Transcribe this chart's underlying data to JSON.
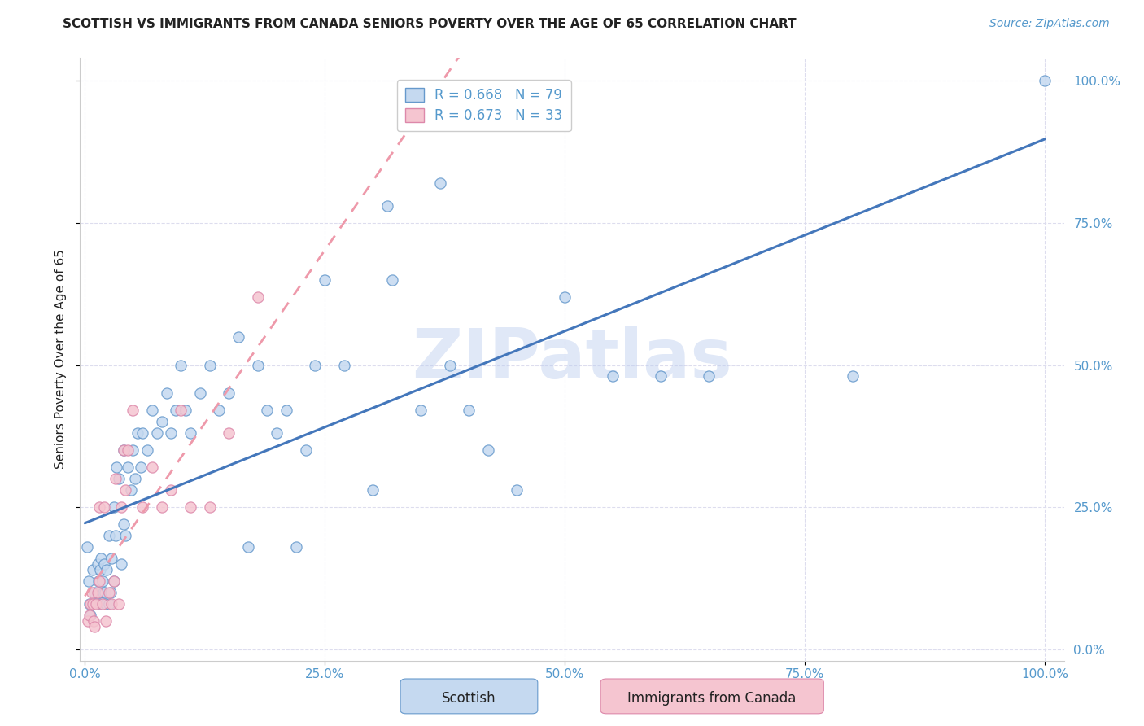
{
  "title": "SCOTTISH VS IMMIGRANTS FROM CANADA SENIORS POVERTY OVER THE AGE OF 65 CORRELATION CHART",
  "source": "Source: ZipAtlas.com",
  "ylabel": "Seniors Poverty Over the Age of 65",
  "watermark": "ZIPatlas",
  "r1": "0.668",
  "n1": "79",
  "r2": "0.673",
  "n2": "33",
  "scottish_color_face": "#c5d9f0",
  "scottish_color_edge": "#6699cc",
  "immigrants_color_face": "#f5c5d0",
  "immigrants_color_edge": "#dd88aa",
  "line_blue": "#4477bb",
  "line_pink": "#ee99aa",
  "bg_color": "#ffffff",
  "grid_color": "#ddddee",
  "tick_color": "#5599cc",
  "title_color": "#222222",
  "source_color": "#5599cc",
  "watermark_color": "#bbccee",
  "scottish_x": [
    0.2,
    0.4,
    0.5,
    0.6,
    0.8,
    1.0,
    1.2,
    1.3,
    1.4,
    1.5,
    1.5,
    1.6,
    1.7,
    1.8,
    1.9,
    2.0,
    2.1,
    2.2,
    2.3,
    2.5,
    2.5,
    2.7,
    2.8,
    3.0,
    3.0,
    3.2,
    3.3,
    3.5,
    3.8,
    4.0,
    4.0,
    4.2,
    4.5,
    4.8,
    5.0,
    5.2,
    5.5,
    5.8,
    6.0,
    6.5,
    7.0,
    7.5,
    8.0,
    8.5,
    9.0,
    9.5,
    10.0,
    10.5,
    11.0,
    12.0,
    13.0,
    14.0,
    15.0,
    16.0,
    17.0,
    18.0,
    19.0,
    20.0,
    21.0,
    22.0,
    23.0,
    24.0,
    25.0,
    27.0,
    30.0,
    32.0,
    35.0,
    38.0,
    40.0,
    42.0,
    45.0,
    50.0,
    55.0,
    60.0,
    65.0,
    80.0,
    100.0,
    31.5,
    37.0
  ],
  "scottish_y": [
    18.0,
    12.0,
    8.0,
    6.0,
    14.0,
    10.0,
    8.0,
    15.0,
    12.0,
    10.0,
    8.0,
    14.0,
    16.0,
    12.0,
    10.0,
    15.0,
    10.0,
    8.0,
    14.0,
    8.0,
    20.0,
    10.0,
    16.0,
    12.0,
    25.0,
    20.0,
    32.0,
    30.0,
    15.0,
    22.0,
    35.0,
    20.0,
    32.0,
    28.0,
    35.0,
    30.0,
    38.0,
    32.0,
    38.0,
    35.0,
    42.0,
    38.0,
    40.0,
    45.0,
    38.0,
    42.0,
    50.0,
    42.0,
    38.0,
    45.0,
    50.0,
    42.0,
    45.0,
    55.0,
    18.0,
    50.0,
    42.0,
    38.0,
    42.0,
    18.0,
    35.0,
    50.0,
    65.0,
    50.0,
    28.0,
    65.0,
    42.0,
    50.0,
    42.0,
    35.0,
    28.0,
    62.0,
    48.0,
    48.0,
    48.0,
    48.0,
    100.0,
    78.0,
    82.0
  ],
  "immigrants_x": [
    0.3,
    0.5,
    0.6,
    0.7,
    0.8,
    0.9,
    1.0,
    1.2,
    1.3,
    1.5,
    1.5,
    1.8,
    2.0,
    2.2,
    2.5,
    2.8,
    3.0,
    3.2,
    3.5,
    3.8,
    4.0,
    4.2,
    4.5,
    5.0,
    6.0,
    7.0,
    8.0,
    9.0,
    10.0,
    11.0,
    13.0,
    15.0,
    18.0
  ],
  "immigrants_y": [
    5.0,
    6.0,
    8.0,
    10.0,
    8.0,
    5.0,
    4.0,
    8.0,
    10.0,
    12.0,
    25.0,
    8.0,
    25.0,
    5.0,
    10.0,
    8.0,
    12.0,
    30.0,
    8.0,
    25.0,
    35.0,
    28.0,
    35.0,
    42.0,
    25.0,
    32.0,
    25.0,
    28.0,
    42.0,
    25.0,
    25.0,
    38.0,
    62.0
  ]
}
